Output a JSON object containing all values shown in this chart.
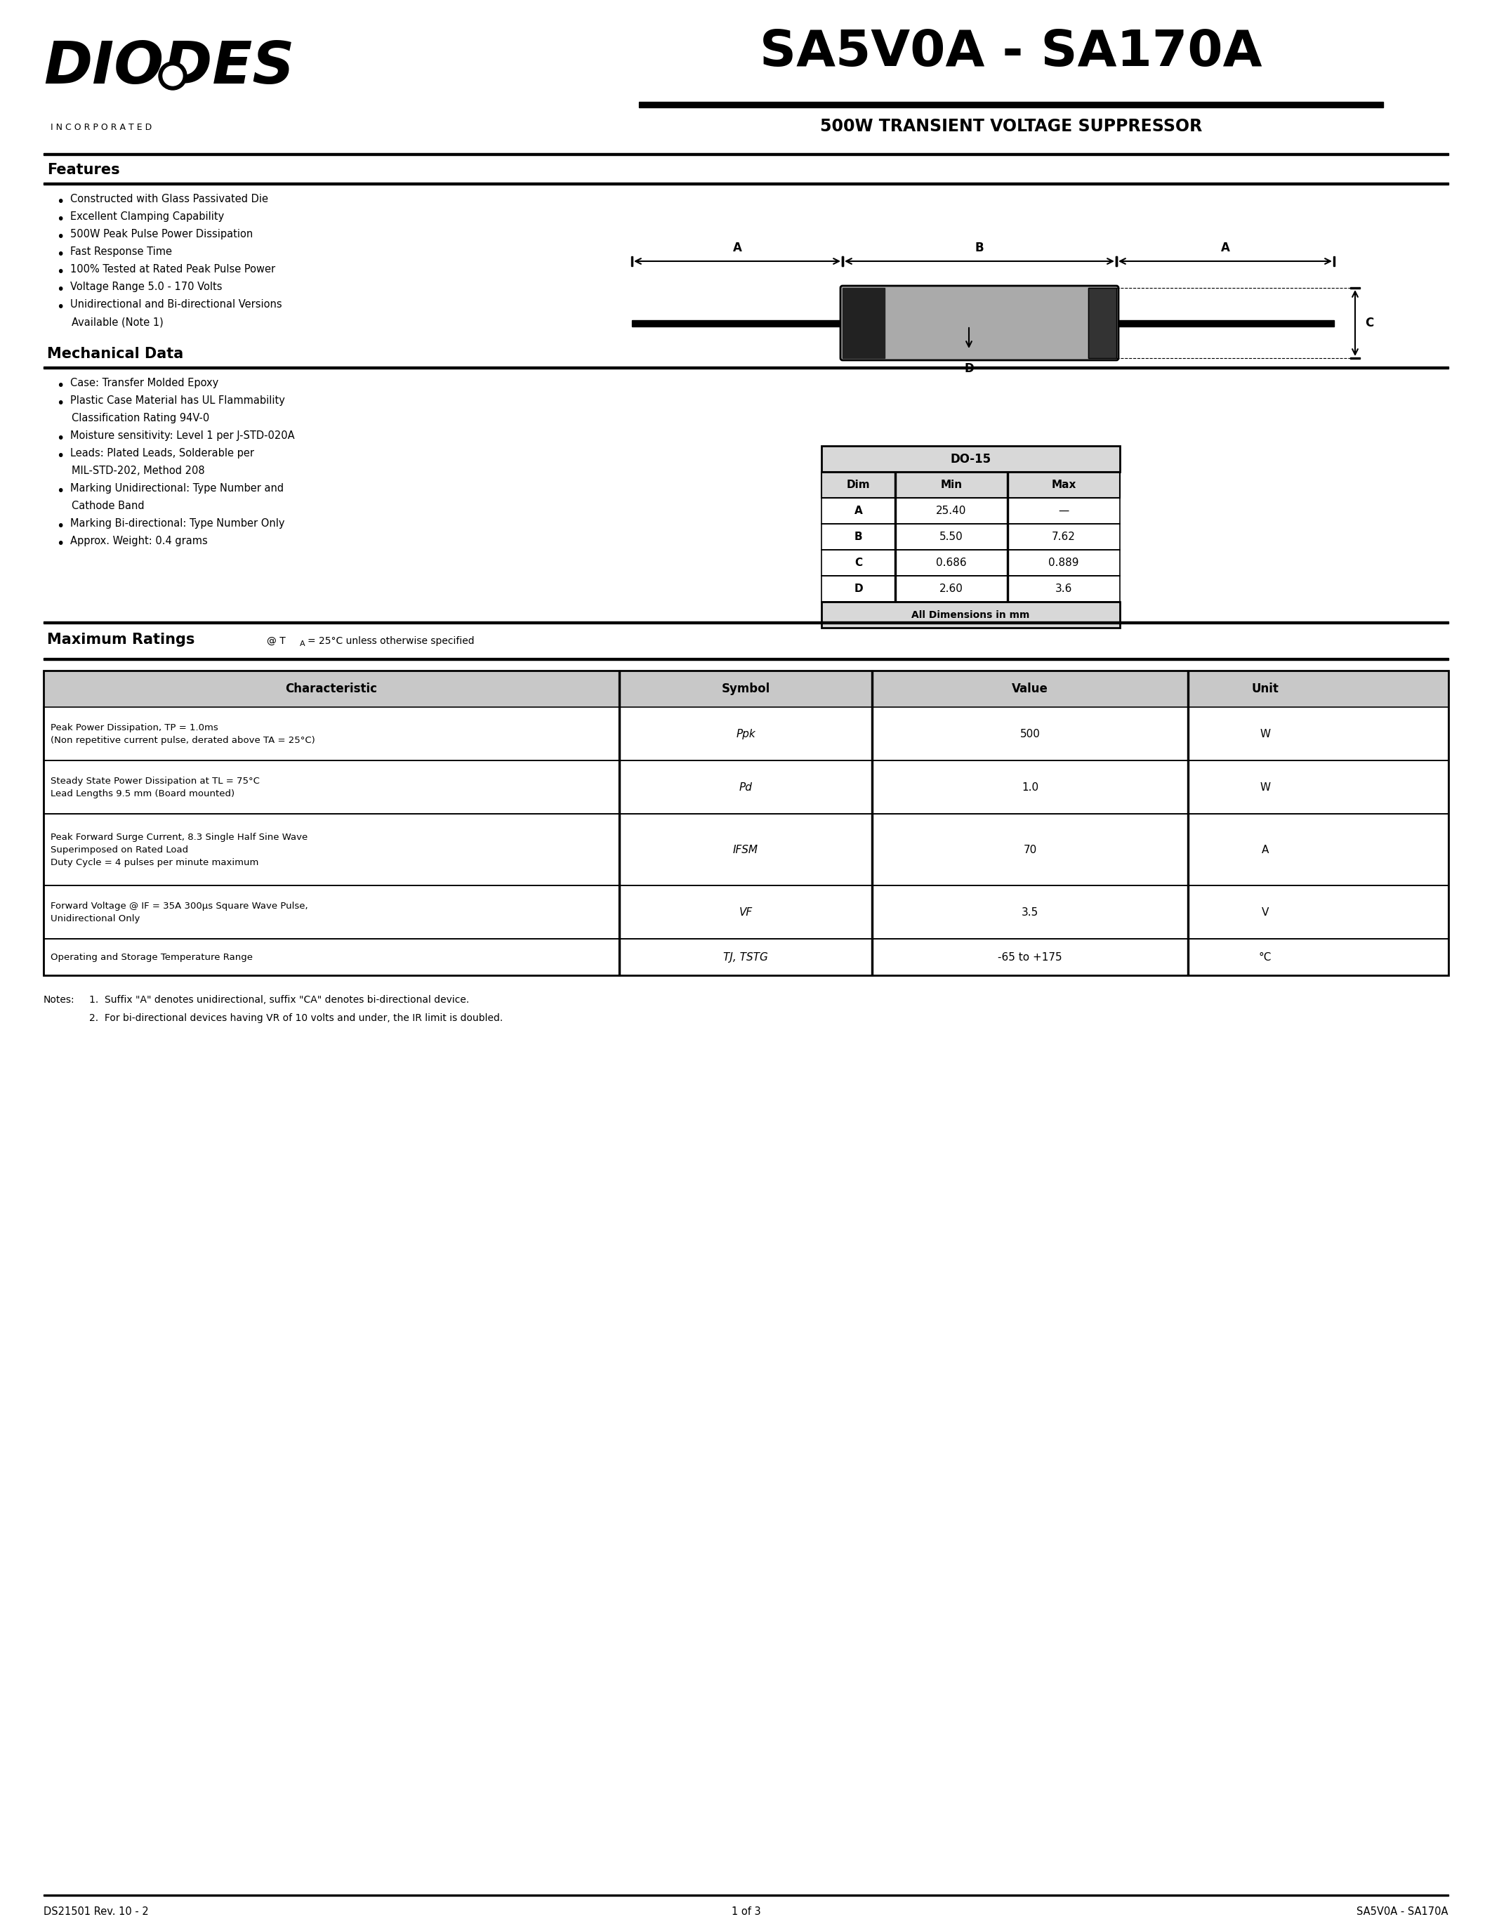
{
  "title": "SA5V0A - SA170A",
  "subtitle": "500W TRANSIENT VOLTAGE SUPPRESSOR",
  "features_title": "Features",
  "feat_line1": "Constructed with Glass Passivated Die",
  "feat_line2": "Excellent Clamping Capability",
  "feat_line3": "500W Peak Pulse Power Dissipation",
  "feat_line4": "Fast Response Time",
  "feat_line5": "100% Tested at Rated Peak Pulse Power",
  "feat_line6": "Voltage Range 5.0 - 170 Volts",
  "feat_line7a": "Unidirectional and Bi-directional Versions",
  "feat_line7b": "Available (Note 1)",
  "mech_title": "Mechanical Data",
  "mech_line1": "Case: Transfer Molded Epoxy",
  "mech_line2a": "Plastic Case Material has UL Flammability",
  "mech_line2b": "Classification Rating 94V-0",
  "mech_line3": "Moisture sensitivity: Level 1 per J-STD-020A",
  "mech_line4a": "Leads: Plated Leads, Solderable per",
  "mech_line4b": "MIL-STD-202, Method 208",
  "mech_line5a": "Marking Unidirectional: Type Number and",
  "mech_line5b": "Cathode Band",
  "mech_line6": "Marking Bi-directional: Type Number Only",
  "mech_line7": "Approx. Weight: 0.4 grams",
  "pkg_title": "DO-15",
  "pkg_col_headers": [
    "Dim",
    "Min",
    "Max"
  ],
  "pkg_rows": [
    [
      "A",
      "25.40",
      "-"
    ],
    [
      "B",
      "5.50",
      "7.62"
    ],
    [
      "C",
      "0.686",
      "0.889"
    ],
    [
      "D",
      "2.60",
      "3.6"
    ]
  ],
  "pkg_footer": "All Dimensions in mm",
  "mr_title": "Maximum Ratings",
  "mr_note": "@ TA = 25",
  "mr_note2": "C unless otherwise specified",
  "tbl_hdr": [
    "Characteristic",
    "Symbol",
    "Value",
    "Unit"
  ],
  "tbl_char": [
    "Peak Power Dissipation, TP = 1.0ms\n(Non repetitive current pulse, derated above TA = 25C)",
    "Steady State Power Dissipation at TL = 75C\nLead Lengths 9.5 mm (Board mounted)",
    "Peak Forward Surge Current, 8.3 Single Half Sine Wave\nSuperimposed on Rated Load\nDuty Cycle = 4 pulses per minute maximum",
    "Forward Voltage @ IF = 35A 300us Square Wave Pulse,\nUnidirectional Only",
    "Operating and Storage Temperature Range"
  ],
  "tbl_sym": [
    "Ppk",
    "Pd",
    "IFSM",
    "VF",
    "TJ, TSTG"
  ],
  "tbl_val": [
    "500",
    "1.0",
    "70",
    "3.5",
    "-65 to +175"
  ],
  "tbl_unit": [
    "W",
    "W",
    "A",
    "V",
    "C"
  ],
  "note1": "1.  Suffix \"A\" denotes unidirectional, suffix \"CA\" denotes bi-directional device.",
  "note2": "2.  For bi-directional devices having VR of 10 volts and under, the IR limit is doubled.",
  "footer_left": "DS21501 Rev. 10 - 2",
  "footer_center": "1 of 3",
  "footer_right": "SA5V0A - SA170A"
}
